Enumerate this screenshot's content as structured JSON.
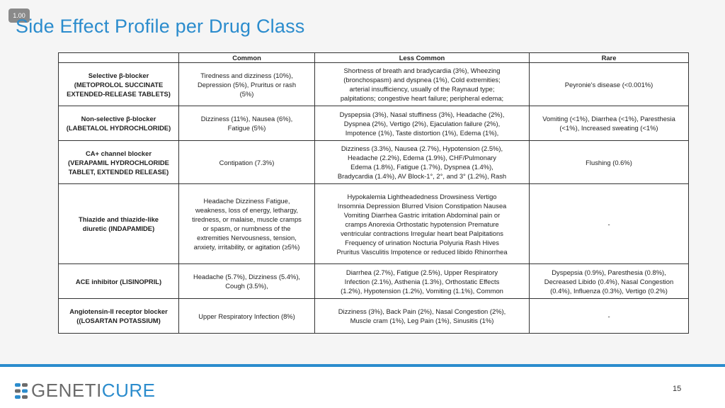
{
  "zoom": "1.00",
  "title": "Side Effect Profile per Drug Class",
  "table": {
    "headers": [
      "",
      "Common",
      "Less Common",
      "Rare"
    ],
    "rows": [
      {
        "drug": [
          "Selective β-blocker",
          "(METOPROLOL SUCCINATE",
          "EXTENDED-RELEASE TABLETS)"
        ],
        "common": [
          "Tiredness and dizziness (10%),",
          "Depression (5%), Pruritus or rash",
          "(5%)"
        ],
        "less": [
          "Shortness of breath and bradycardia (3%), Wheezing",
          "(bronchospasm) and dyspnea (1%), Cold extremities;",
          "arterial insufficiency, usually of the Raynaud type;",
          "palpitations; congestive heart failure; peripheral edema;"
        ],
        "rare": [
          "Peyronie's disease (<0.001%)"
        ]
      },
      {
        "drug": [
          "Non-selective β-blocker",
          "(LABETALOL HYDROCHLORIDE)"
        ],
        "common": [
          "Dizziness (11%), Nausea (6%),",
          "Fatigue (5%)"
        ],
        "less": [
          "Dyspepsia (3%), Nasal stuffiness (3%), Headache (2%),",
          "Dyspnea (2%), Vertigo (2%), Ejaculation failure (2%),",
          "Impotence (1%), Taste distortion (1%), Edema (1%),"
        ],
        "rare": [
          "Vomiting (<1%), Diarrhea (<1%), Paresthesia",
          "(<1%), Increased sweating (<1%)"
        ]
      },
      {
        "drug": [
          "CA+ channel blocker",
          "(VERAPAMIL HYDROCHLORIDE",
          "TABLET, EXTENDED RELEASE)"
        ],
        "common": [
          "Contipation (7.3%)"
        ],
        "less": [
          "Dizziness (3.3%), Nausea (2.7%),  Hypotension (2.5%),",
          "Headache (2.2%), Edema (1.9%), CHF/Pulmonary",
          "Edema (1.8%), Fatigue (1.7%), Dyspnea (1.4%),",
          "Bradycardia (1.4%), AV Block-1°, 2°, and 3° (1.2%), Rash"
        ],
        "rare": [
          "Flushing (0.6%)"
        ]
      },
      {
        "drug": [
          "Thiazide and thiazide-like",
          "diuretic (INDAPAMIDE)"
        ],
        "common": [
          "Headache Dizziness Fatigue,",
          "weakness, loss of energy, lethargy,",
          "tiredness, or malaise, muscle cramps",
          "or spasm, or numbness of the",
          "extremities Nervousness, tension,",
          "anxiety, irritability, or agitation (≥5%)"
        ],
        "less": [
          "Hypokalemia Lightheadedness Drowsiness Vertigo",
          "Insomnia Depression Blurred Vision Constipation Nausea",
          "Vomiting Diarrhea Gastric irritation Abdominal pain or",
          "cramps Anorexia Orthostatic hypotension Premature",
          "ventricular contractions Irregular heart beat Palpitations",
          "Frequency of urination Nocturia Polyuria Rash Hives",
          "Pruritus Vasculitis Impotence or reduced libido Rhinorrhea"
        ],
        "rare": [
          "-"
        ]
      },
      {
        "drug": [
          "ACE inhibitor (LISINOPRIL)"
        ],
        "common": [
          "Headache (5.7%), Dizziness (5.4%),",
          "Cough (3.5%),"
        ],
        "less": [
          "Diarrhea (2.7%), Fatigue (2.5%), Upper Respiratory",
          "Infection (2.1%), Asthenia (1.3%), Orthostatic Effects",
          "(1.2%), Hypotension (1.2%),   Vomiting (1.1%), Common"
        ],
        "rare": [
          "Dyspepsia (0.9%), Paresthesia (0.8%),",
          "Decreased Libido (0.4%), Nasal Congestion",
          "(0.4%), Influenza (0.3%), Vertigo (0.2%)"
        ]
      },
      {
        "drug": [
          "Angiotensin-II receptor blocker",
          "((LOSARTAN POTASSIUM)"
        ],
        "common": [
          "Upper Respiratory Infection (8%)"
        ],
        "less": [
          "Dizziness (3%), Back Pain (2%), Nasal Congestion (2%),",
          "Muscle cram (1%), Leg Pain (1%), Sinusitis (1%)"
        ],
        "rare": [
          "-"
        ]
      }
    ]
  },
  "footer": {
    "logo_main": "GENETI",
    "logo_accent": "CURE",
    "page_number": "15",
    "colors": {
      "accent": "#2b8ccd",
      "logo_gray": "#6b6b6b"
    }
  }
}
